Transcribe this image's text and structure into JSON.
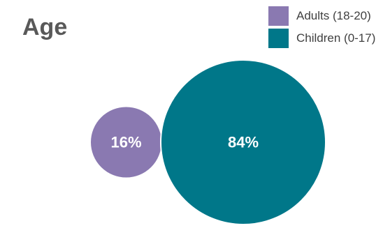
{
  "chart_data": {
    "type": "bubble",
    "title": "Age",
    "legend_position": "top-right",
    "series": [
      {
        "name": "Adults (18-20)",
        "value": 16,
        "label": "16%",
        "color": "#8a79b1"
      },
      {
        "name": "Children (0-17)",
        "value": 84,
        "label": "84%",
        "color": "#007789"
      }
    ]
  }
}
